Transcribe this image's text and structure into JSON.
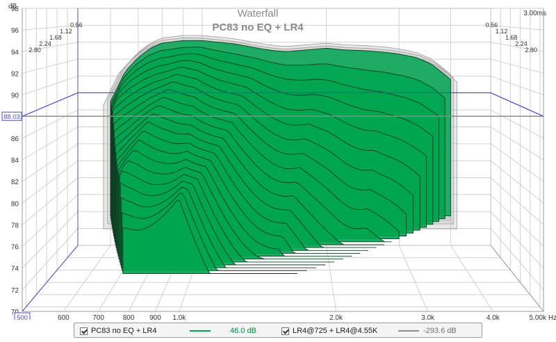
{
  "chart_data": {
    "type": "waterfall",
    "title": "Waterfall",
    "subtitle": "PC83 no EQ + LR4",
    "ylabel": "dB",
    "xunit": "Hz",
    "ylim": [
      70,
      98
    ],
    "y_ticks": [
      "70",
      "72",
      "74",
      "76",
      "78",
      "80",
      "82",
      "84",
      "86",
      "88",
      "90",
      "92",
      "94",
      "96",
      "98"
    ],
    "x_range_hz": [
      500,
      5000
    ],
    "x_ticks": [
      {
        "hz": 500,
        "label": "500"
      },
      {
        "hz": 600,
        "label": "600"
      },
      {
        "hz": 700,
        "label": "700"
      },
      {
        "hz": 800,
        "label": "800"
      },
      {
        "hz": 900,
        "label": "900"
      },
      {
        "hz": 1000,
        "label": "1.0k"
      },
      {
        "hz": 2000,
        "label": "2.0k"
      },
      {
        "hz": 3000,
        "label": "3.0k"
      },
      {
        "hz": 4000,
        "label": "4.0k"
      },
      {
        "hz": 5000,
        "label": "5.00k"
      }
    ],
    "time_ticks": [
      "0.56",
      "1.12",
      "1.68",
      "2.24",
      "2.80"
    ],
    "time_max_label": "3.00ms",
    "cursor_level": "88.03",
    "cursor_freq_label": "500",
    "slices_ms": [
      0.0,
      0.15,
      0.3,
      0.45,
      0.6,
      0.75,
      0.9,
      1.05,
      1.2,
      1.35,
      1.5,
      1.65,
      1.8,
      1.95,
      2.1,
      2.25,
      2.4,
      2.55,
      2.7,
      2.85,
      3.0
    ],
    "first_slice": {
      "freq_hz": [
        600,
        650,
        700,
        750,
        800,
        900,
        1000,
        1100,
        1200,
        1300,
        1400,
        1500,
        1600,
        1800,
        2000,
        2200,
        2500,
        2800,
        3000,
        3300,
        3600,
        4000
      ],
      "db": [
        87.0,
        90.5,
        92.2,
        93.3,
        93.9,
        94.2,
        94.2,
        94.0,
        93.8,
        93.5,
        93.2,
        93.0,
        92.9,
        93.1,
        93.3,
        93.1,
        93.0,
        92.8,
        92.6,
        92.2,
        91.4,
        89.6
      ]
    },
    "decay_db_per_ms": 4.6,
    "colors": {
      "fill": "#00a550",
      "reference": "#bdbdbd",
      "cursor": "#4a4ad0"
    },
    "legend": [
      {
        "checked": true,
        "name": "PC83 no EQ + LR4",
        "value": "46.0 dB",
        "line_color": "#00a550",
        "value_color": "#008a3c"
      },
      {
        "checked": true,
        "name": "LR4@725 + LR4@4.55K",
        "value": "-293.6 dB",
        "line_color": "#8c8c8c",
        "value_color": "#707070"
      }
    ]
  }
}
